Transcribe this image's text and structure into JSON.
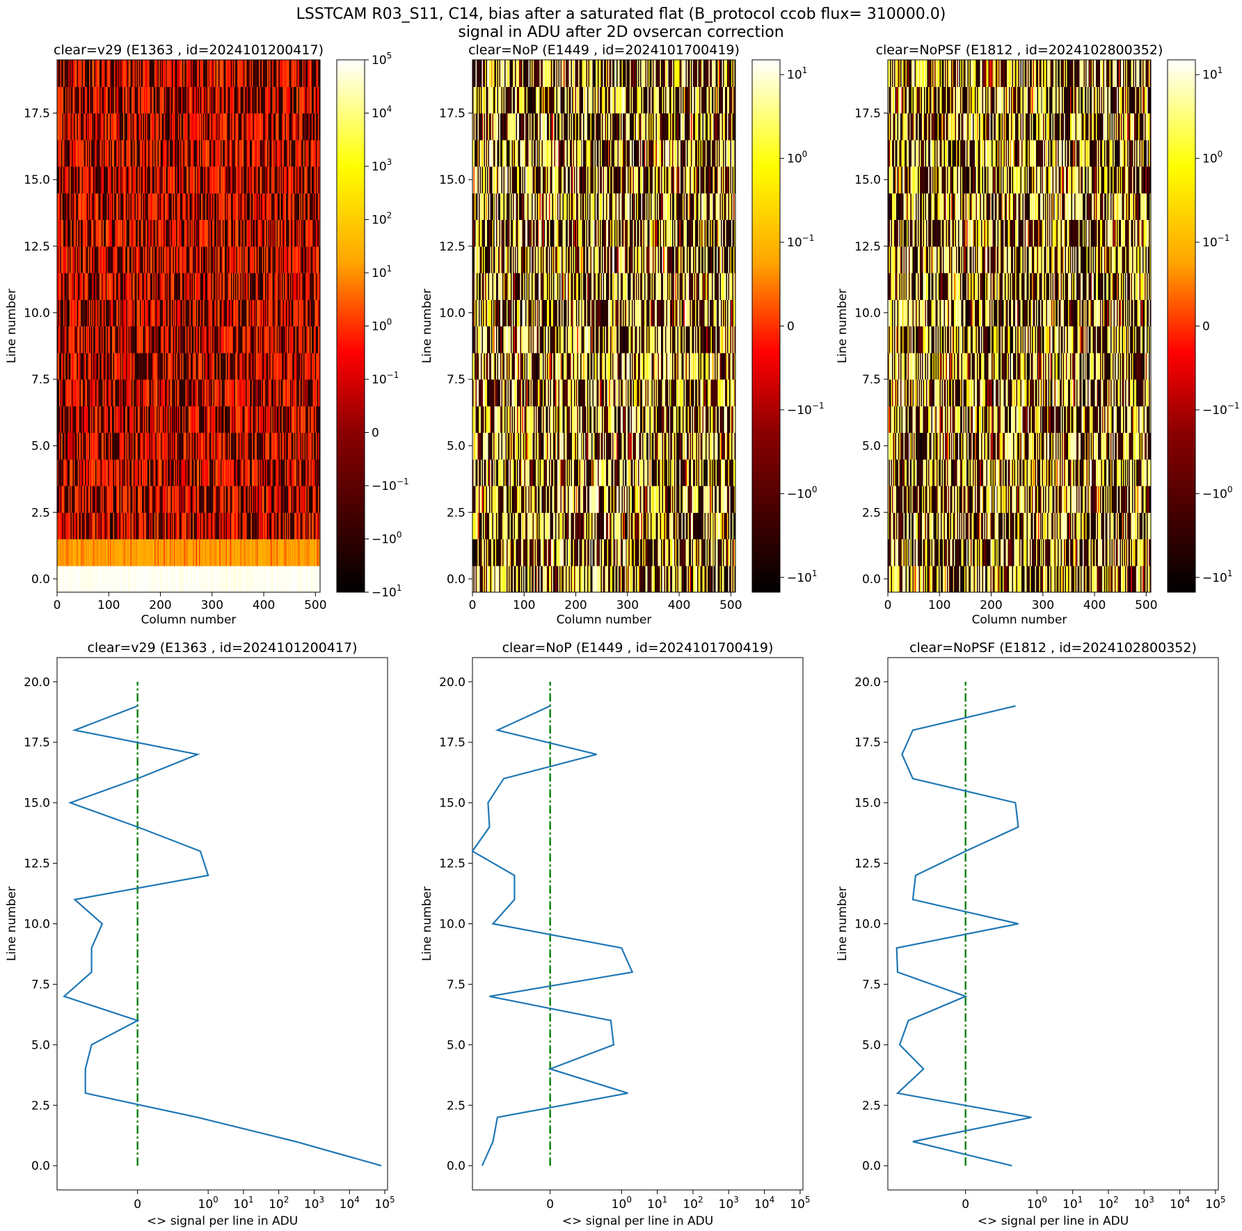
{
  "figure": {
    "title_line1": "LSSTCAM R03_S11, C14, bias after a saturated flat (B_protocol ccob flux= 310000.0)",
    "title_line2": "signal in ADU after 2D ovsercan correction"
  },
  "colors": {
    "line": "#1f77b4",
    "zero_line": "#008000",
    "colormap": [
      "#000000",
      "#8b0000",
      "#ff0000",
      "#ffa500",
      "#ffff00",
      "#ffffff"
    ]
  },
  "chart_data": [
    {
      "type": "heatmap",
      "title": "clear=v29 (E1363 , id=2024101200417)",
      "xlabel": "Column number",
      "ylabel": "Line number",
      "xlim": [
        0,
        509
      ],
      "ylim": [
        -0.5,
        19.5
      ],
      "xticks": [
        0,
        100,
        200,
        300,
        400,
        500
      ],
      "yticks": [
        0.0,
        2.5,
        5.0,
        7.5,
        10.0,
        12.5,
        15.0,
        17.5
      ],
      "ytick_labels": [
        "0.0",
        "2.5",
        "5.0",
        "7.5",
        "10.0",
        "12.5",
        "15.0",
        "17.5"
      ],
      "colorbar": {
        "scale": "symlog",
        "range": [
          -10,
          100000
        ],
        "ticks": [
          {
            "value": 100000,
            "label": "10^5"
          },
          {
            "value": 10000,
            "label": "10^4"
          },
          {
            "value": 1000,
            "label": "10^3"
          },
          {
            "value": 100,
            "label": "10^2"
          },
          {
            "value": 10,
            "label": "10^1"
          },
          {
            "value": 1,
            "label": "10^0"
          },
          {
            "value": 0.1,
            "label": "10^-1"
          },
          {
            "value": 0,
            "label": "0"
          },
          {
            "value": -0.1,
            "label": "-10^-1"
          },
          {
            "value": -1,
            "label": "-10^0"
          },
          {
            "value": -10,
            "label": "-10^1"
          }
        ]
      },
      "row_mean": [
        80000,
        300,
        0.5,
        -0.3,
        -0.3,
        -0.2,
        0,
        -1.2,
        -0.2,
        -0.2,
        -0.1,
        -0.6,
        1.0,
        0.6,
        0,
        -0.8,
        0,
        0.5,
        -0.6,
        0
      ],
      "pixel_spread": 2.0
    },
    {
      "type": "heatmap",
      "title": "clear=NoP (E1449 , id=2024101700419)",
      "xlabel": "Column number",
      "ylabel": "Line number",
      "xlim": [
        0,
        509
      ],
      "ylim": [
        -0.5,
        19.5
      ],
      "xticks": [
        0,
        100,
        200,
        300,
        400,
        500
      ],
      "yticks": [
        0.0,
        2.5,
        5.0,
        7.5,
        10.0,
        12.5,
        15.0,
        17.5
      ],
      "ytick_labels": [
        "0.0",
        "2.5",
        "5.0",
        "7.5",
        "10.0",
        "12.5",
        "15.0",
        "17.5"
      ],
      "colorbar": {
        "scale": "symlog",
        "range": [
          -15,
          15
        ],
        "ticks": [
          {
            "value": 10,
            "label": "10^1"
          },
          {
            "value": 1,
            "label": "10^0"
          },
          {
            "value": 0.1,
            "label": "10^-1"
          },
          {
            "value": 0,
            "label": "0"
          },
          {
            "value": -0.1,
            "label": "-10^-1"
          },
          {
            "value": -1,
            "label": "-10^0"
          },
          {
            "value": -10,
            "label": "-10^1"
          }
        ]
      },
      "row_mean": [
        -0.8,
        -0.4,
        -0.3,
        1.5,
        0,
        0.6,
        0.5,
        -0.5,
        2.0,
        1.0,
        -0.4,
        -0.1,
        -0.1,
        -1.5,
        -0.5,
        -0.55,
        -0.2,
        0.2,
        -0.3,
        0
      ],
      "pixel_spread": 5.0
    },
    {
      "type": "heatmap",
      "title": "clear=NoPSF (E1812 , id=2024102800352)",
      "xlabel": "Column number",
      "ylabel": "Line number",
      "xlim": [
        0,
        509
      ],
      "ylim": [
        -0.5,
        19.5
      ],
      "xticks": [
        0,
        100,
        200,
        300,
        400,
        500
      ],
      "yticks": [
        0.0,
        2.5,
        5.0,
        7.5,
        10.0,
        12.5,
        15.0,
        17.5
      ],
      "ytick_labels": [
        "0.0",
        "2.5",
        "5.0",
        "7.5",
        "10.0",
        "12.5",
        "15.0",
        "17.5"
      ],
      "colorbar": {
        "scale": "symlog",
        "range": [
          -15,
          15
        ],
        "ticks": [
          {
            "value": 10,
            "label": "10^1"
          },
          {
            "value": 1,
            "label": "10^0"
          },
          {
            "value": 0.1,
            "label": "10^-1"
          },
          {
            "value": 0,
            "label": "0"
          },
          {
            "value": -0.1,
            "label": "-10^-1"
          },
          {
            "value": -1,
            "label": "-10^0"
          },
          {
            "value": -10,
            "label": "-10^1"
          }
        ]
      },
      "row_mean": [
        0.2,
        -0.3,
        0.7,
        -0.8,
        -0.15,
        -0.7,
        -0.4,
        0,
        -0.8,
        -0.85,
        0.3,
        -0.3,
        -0.25,
        0,
        0.3,
        0.25,
        -0.3,
        -0.6,
        -0.3,
        0.25
      ],
      "pixel_spread": 5.0
    },
    {
      "type": "line",
      "title": "clear=v29 (E1363 , id=2024101200417)",
      "xlabel": "<> signal per line in ADU",
      "ylabel": "Line number",
      "xscale": "symlog",
      "xlim": [
        -1.9,
        120000
      ],
      "ylim": [
        -1,
        21
      ],
      "xticks": [
        {
          "value": 0,
          "label": "0"
        },
        {
          "value": 1,
          "label": "10^0"
        },
        {
          "value": 10,
          "label": "10^1"
        },
        {
          "value": 100,
          "label": "10^2"
        },
        {
          "value": 1000,
          "label": "10^3"
        },
        {
          "value": 10000,
          "label": "10^4"
        },
        {
          "value": 100000,
          "label": "10^5"
        }
      ],
      "yticks": [
        0.0,
        2.5,
        5.0,
        7.5,
        10.0,
        12.5,
        15.0,
        17.5,
        20.0
      ],
      "ytick_labels": [
        "0.0",
        "2.5",
        "5.0",
        "7.5",
        "10.0",
        "12.5",
        "15.0",
        "17.5",
        "20.0"
      ],
      "x": [
        80000,
        300,
        0.5,
        -0.3,
        -0.3,
        -0.2,
        0,
        -1.2,
        -0.2,
        -0.2,
        -0.1,
        -0.6,
        1.0,
        0.6,
        0,
        -0.8,
        0,
        0.5,
        -0.6,
        0
      ],
      "y": [
        0,
        1,
        2,
        3,
        4,
        5,
        6,
        7,
        8,
        9,
        10,
        11,
        12,
        13,
        14,
        15,
        16,
        17,
        18,
        19
      ],
      "zero_line": {
        "x": 0,
        "y": [
          0,
          20
        ]
      }
    },
    {
      "type": "line",
      "title": "clear=NoP (E1449 , id=2024101700419)",
      "xlabel": "<> signal per line in ADU",
      "ylabel": "Line number",
      "xscale": "symlog",
      "xlim": [
        -1.5,
        120000
      ],
      "ylim": [
        -1,
        21
      ],
      "xticks": [
        {
          "value": 0,
          "label": "0"
        },
        {
          "value": 1,
          "label": "10^0"
        },
        {
          "value": 10,
          "label": "10^1"
        },
        {
          "value": 100,
          "label": "10^2"
        },
        {
          "value": 1000,
          "label": "10^3"
        },
        {
          "value": 10000,
          "label": "10^4"
        },
        {
          "value": 100000,
          "label": "10^5"
        }
      ],
      "yticks": [
        0.0,
        2.5,
        5.0,
        7.5,
        10.0,
        12.5,
        15.0,
        17.5,
        20.0
      ],
      "ytick_labels": [
        "0.0",
        "2.5",
        "5.0",
        "7.5",
        "10.0",
        "12.5",
        "15.0",
        "17.5",
        "20.0"
      ],
      "x": [
        -0.8,
        -0.4,
        -0.3,
        1.5,
        0,
        0.6,
        0.5,
        -0.5,
        2.0,
        1.0,
        -0.4,
        -0.1,
        -0.1,
        -1.5,
        -0.5,
        -0.55,
        -0.2,
        0.2,
        -0.3,
        0
      ],
      "y": [
        0,
        1,
        2,
        3,
        4,
        5,
        6,
        7,
        8,
        9,
        10,
        11,
        12,
        13,
        14,
        15,
        16,
        17,
        18,
        19
      ],
      "zero_line": {
        "x": 0,
        "y": [
          0,
          20
        ]
      }
    },
    {
      "type": "line",
      "title": "clear=NoPSF (E1812 , id=2024102800352)",
      "xlabel": "<> signal per line in ADU",
      "ylabel": "Line number",
      "xscale": "symlog",
      "xlim": [
        -1.5,
        120000
      ],
      "ylim": [
        -1,
        21
      ],
      "xticks": [
        {
          "value": 0,
          "label": "0"
        },
        {
          "value": 1,
          "label": "10^0"
        },
        {
          "value": 10,
          "label": "10^1"
        },
        {
          "value": 100,
          "label": "10^2"
        },
        {
          "value": 1000,
          "label": "10^3"
        },
        {
          "value": 10000,
          "label": "10^4"
        },
        {
          "value": 100000,
          "label": "10^5"
        }
      ],
      "yticks": [
        0.0,
        2.5,
        5.0,
        7.5,
        10.0,
        12.5,
        15.0,
        17.5,
        20.0
      ],
      "ytick_labels": [
        "0.0",
        "2.5",
        "5.0",
        "7.5",
        "10.0",
        "12.5",
        "15.0",
        "17.5",
        "20.0"
      ],
      "x": [
        0.2,
        -0.3,
        0.7,
        -0.8,
        -0.15,
        -0.7,
        -0.4,
        0,
        -0.8,
        -0.85,
        0.3,
        -0.3,
        -0.25,
        0,
        0.3,
        0.25,
        -0.3,
        -0.6,
        -0.3,
        0.25
      ],
      "y": [
        0,
        1,
        2,
        3,
        4,
        5,
        6,
        7,
        8,
        9,
        10,
        11,
        12,
        13,
        14,
        15,
        16,
        17,
        18,
        19
      ],
      "zero_line": {
        "x": 0,
        "y": [
          0,
          20
        ]
      }
    }
  ]
}
